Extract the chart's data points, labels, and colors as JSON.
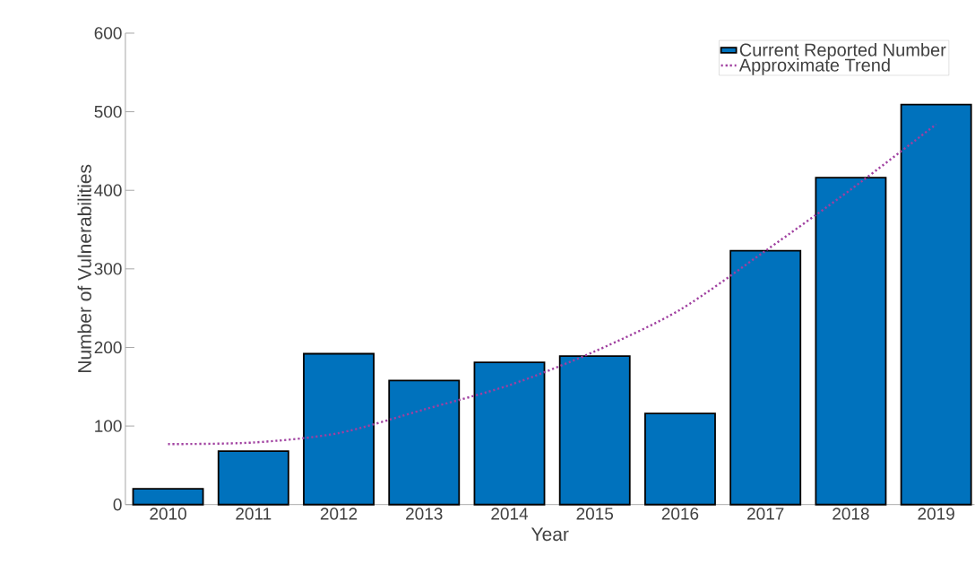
{
  "chart_data": {
    "type": "bar",
    "xlabel": "Year",
    "ylabel": "Number of Vulnerabilities",
    "categories": [
      "2010",
      "2011",
      "2012",
      "2013",
      "2014",
      "2015",
      "2016",
      "2017",
      "2018",
      "2019"
    ],
    "series": [
      {
        "name": "Current Reported Number",
        "color": "#0072bd",
        "values": [
          20,
          68,
          192,
          158,
          181,
          189,
          116,
          323,
          416,
          509
        ]
      },
      {
        "name": "Approximate Trend",
        "type": "line",
        "line_style": "dotted",
        "color": "#a040a0",
        "values": [
          77,
          79,
          91,
          121,
          152,
          195,
          248,
          323,
          401,
          484
        ]
      }
    ],
    "ylim": [
      0,
      600
    ],
    "yticks": [
      0,
      100,
      200,
      300,
      400,
      500,
      600
    ],
    "grid": false,
    "legend": "top right"
  }
}
